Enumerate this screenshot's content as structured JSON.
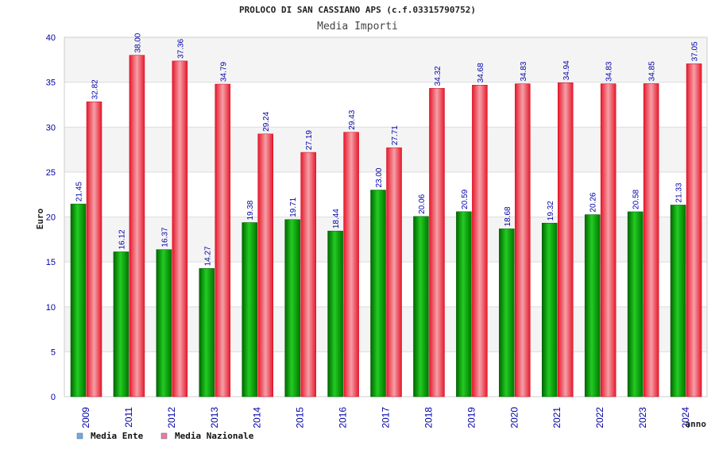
{
  "chart_data": {
    "type": "bar",
    "title": "PROLOCO DI SAN CASSIANO APS (c.f.03315790752)",
    "subtitle": "Media Importi",
    "ylabel": "Euro",
    "xlabel": "anno",
    "ylim": [
      0,
      40
    ],
    "yticks": [
      0,
      5,
      10,
      15,
      20,
      25,
      30,
      35,
      40
    ],
    "categories": [
      "2009",
      "2011",
      "2012",
      "2013",
      "2014",
      "2015",
      "2016",
      "2017",
      "2018",
      "2019",
      "2020",
      "2021",
      "2022",
      "2023",
      "2024"
    ],
    "series": [
      {
        "name": "Media Ente",
        "color": "#00aa00",
        "legend_color": "#6fa8e8",
        "values": [
          21.45,
          16.12,
          16.37,
          14.27,
          19.38,
          19.71,
          18.44,
          23.0,
          20.06,
          20.59,
          18.68,
          19.32,
          20.26,
          20.58,
          21.33
        ],
        "labels": [
          "21.45",
          "16.12",
          "16.37",
          "14.27",
          "19.38",
          "19.71",
          "18.44",
          "23.00",
          "20.06",
          "20.59",
          "18.68",
          "19.32",
          "20.26",
          "20.58",
          "21.33"
        ]
      },
      {
        "name": "Media Nazionale",
        "color": "#e8192c",
        "legend_color": "#e87aa8",
        "values": [
          32.82,
          38.0,
          37.36,
          34.79,
          29.24,
          27.19,
          29.43,
          27.71,
          34.32,
          34.68,
          34.83,
          34.94,
          34.83,
          34.85,
          37.05
        ],
        "labels": [
          "32.82",
          "38.00",
          "37.36",
          "34.79",
          "29.24",
          "27.19",
          "29.43",
          "27.71",
          "34.32",
          "34.68",
          "34.83",
          "34.94",
          "34.83",
          "34.85",
          "37.05"
        ]
      }
    ],
    "grid": true,
    "legend_position": "bottom-left"
  }
}
